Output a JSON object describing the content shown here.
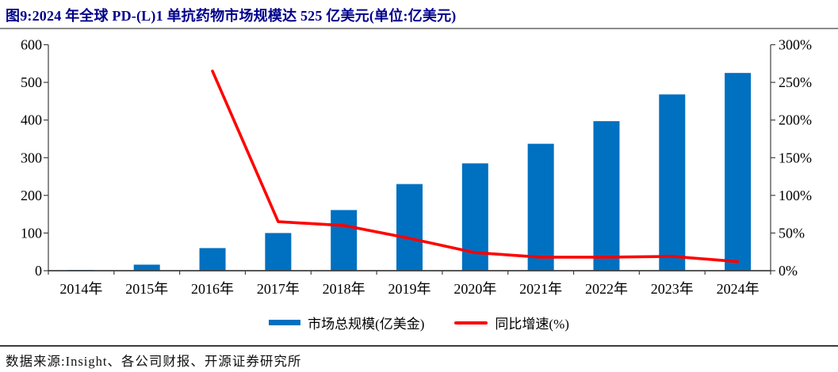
{
  "title": "图9:2024 年全球 PD-(L)1 单抗药物市场规模达 525 亿美元(单位:亿美元)",
  "footer": {
    "source_label": "数据来源:Insight、各公司财报、开源证券研究所"
  },
  "colors": {
    "bar_fill": "#0070C0",
    "line_stroke": "#FF0000",
    "title_text": "#00008B",
    "axis": "#3F3F3F",
    "tick_text": "#000000"
  },
  "chart_data": {
    "type": "combo",
    "title": "2024 年全球 PD-(L)1 单抗药物市场规模达 525 亿美元(单位:亿美元)",
    "categories": [
      "2014年",
      "2015年",
      "2016年",
      "2017年",
      "2018年",
      "2019年",
      "2020年",
      "2021年",
      "2022年",
      "2023年",
      "2024年"
    ],
    "series": [
      {
        "name": "市场总规模(亿美金)",
        "type": "bar",
        "axis": "left",
        "color": "#0070C0",
        "values": [
          2,
          16,
          60,
          100,
          161,
          230,
          285,
          337,
          397,
          468,
          525
        ]
      },
      {
        "name": "同比增速(%)",
        "type": "line",
        "axis": "right",
        "color": "#FF0000",
        "values": [
          null,
          null,
          265,
          65,
          60,
          43,
          24,
          18,
          18,
          19,
          12
        ]
      }
    ],
    "left_axis": {
      "min": 0,
      "max": 600,
      "step": 100,
      "tick_labels": [
        "0",
        "100",
        "200",
        "300",
        "400",
        "500",
        "600"
      ]
    },
    "right_axis": {
      "min": 0,
      "max": 300,
      "step": 50,
      "tick_labels": [
        "0%",
        "50%",
        "100%",
        "150%",
        "200%",
        "250%",
        "300%"
      ]
    },
    "grid": false,
    "legend_position": "bottom"
  }
}
